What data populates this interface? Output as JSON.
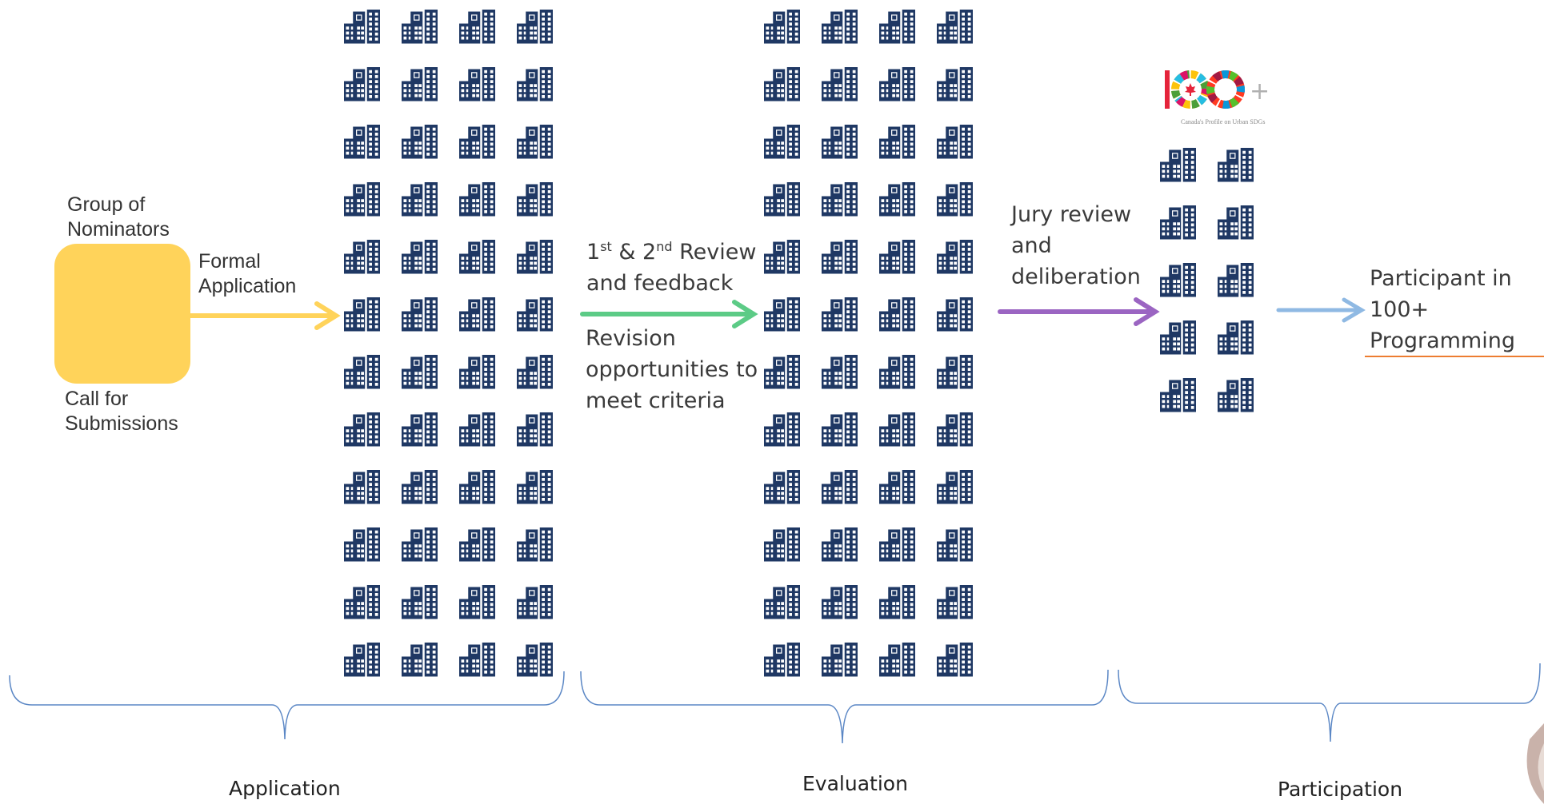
{
  "nominators": {
    "top_label": [
      "Group of",
      "Nominators"
    ],
    "bottom_label": [
      "Call for",
      "Submissions"
    ],
    "box_color": "#ffd35a"
  },
  "flow": {
    "formal_application": [
      "Formal",
      "Application"
    ],
    "review": {
      "n1": "1",
      "sup1": "st",
      "amp": " & ",
      "n2": "2",
      "sup2": "nd",
      "rest": " Review",
      "line2": "and feedback"
    },
    "revision": [
      "Revision",
      "opportunities to",
      "meet criteria"
    ],
    "jury": [
      "Jury review",
      "and",
      "deliberation"
    ],
    "participant": [
      "Participant in",
      "100+",
      "Programming"
    ]
  },
  "phases": {
    "application": "Application",
    "evaluation": "Evaluation",
    "participation": "Participation"
  },
  "logo": {
    "mark": "100+",
    "caption": "Canada's Profile on Urban SDGs"
  },
  "colors": {
    "building": "#1f3864",
    "arrow_application": "#ffd35a",
    "arrow_review": "#5ccb86",
    "arrow_jury": "#9b65c2",
    "arrow_participation": "#8fb9e3",
    "underline": "#ed7d31",
    "brace": "#5b87c5"
  },
  "building_grids": [
    {
      "name": "application-buildings",
      "rows": 12,
      "cols": 4
    },
    {
      "name": "evaluation-buildings",
      "rows": 12,
      "cols": 4
    },
    {
      "name": "participation-buildings",
      "rows": 5,
      "cols": 2
    }
  ]
}
